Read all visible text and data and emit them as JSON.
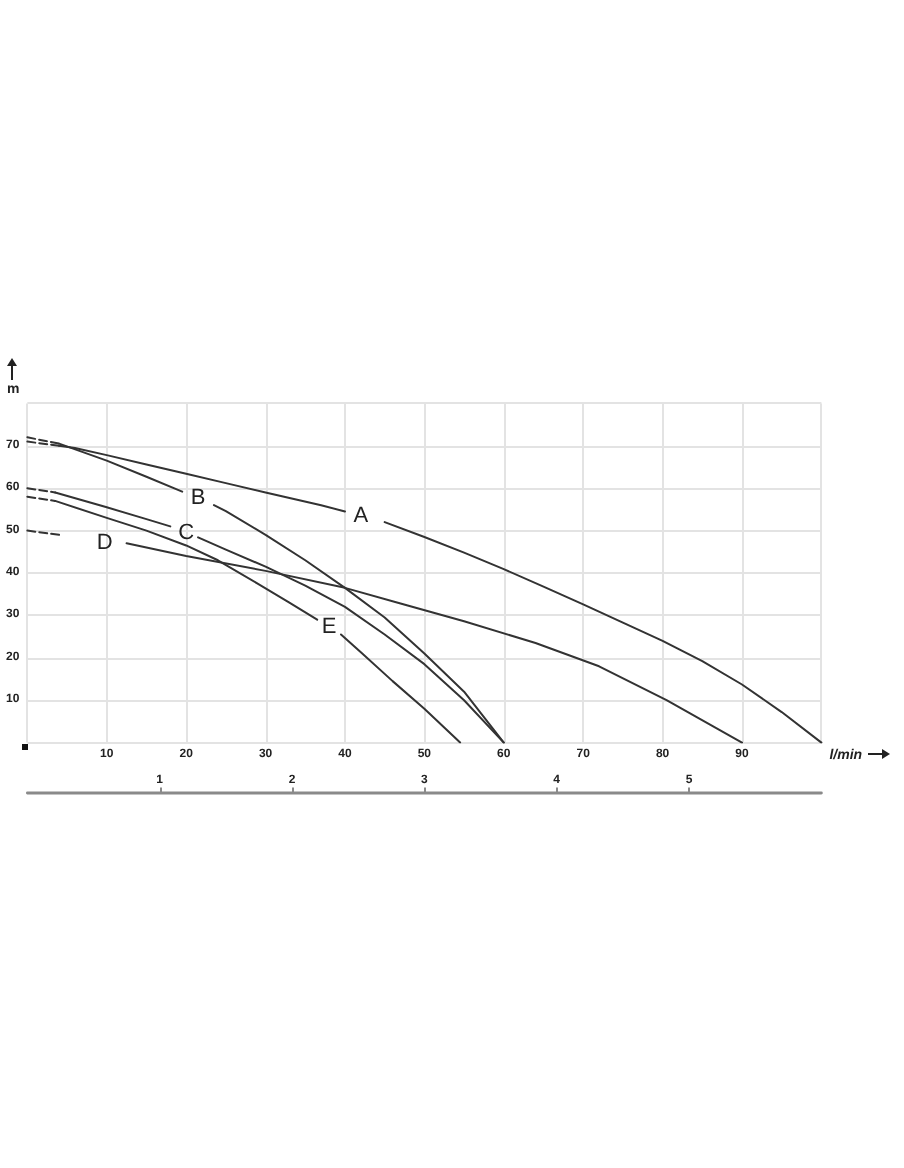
{
  "chart_data": {
    "type": "line",
    "xlabel": "l/min",
    "ylabel": "m",
    "xlim": [
      0,
      100
    ],
    "xticks": [
      {
        "value": 0,
        "label": null
      },
      10,
      20,
      30,
      40,
      50,
      60,
      70,
      80,
      90,
      {
        "value": 100,
        "label": null
      }
    ],
    "ylim": [
      0,
      80
    ],
    "yticks": [
      {
        "value": 0,
        "label": null
      },
      10,
      20,
      30,
      40,
      50,
      60,
      70,
      {
        "value": 80,
        "label": null
      }
    ],
    "x2lim": [
      0,
      6
    ],
    "x2ticks": [
      1,
      2,
      3,
      4,
      5
    ],
    "grid": true,
    "marker": "none",
    "series": [
      {
        "color": "#333333",
        "line_style": "dashed",
        "x": [
          0,
          4
        ],
        "values": [
          71,
          70
        ]
      },
      {
        "name": "A",
        "color": "#333333",
        "line_style": "solid",
        "x": [
          4,
          6,
          10,
          15,
          20,
          25,
          30,
          37,
          40,
          42,
          45,
          50,
          55,
          60,
          65,
          70,
          75,
          80,
          85,
          90,
          95,
          100
        ],
        "values": [
          70,
          69.5,
          67.8,
          65.6,
          63.4,
          61.2,
          59,
          56,
          54.5,
          null,
          52,
          48.5,
          44.8,
          40.9,
          36.8,
          32.6,
          28.3,
          24,
          19.2,
          13.7,
          7.2,
          0
        ]
      },
      {
        "color": "#333333",
        "line_style": "dashed",
        "x": [
          0,
          4
        ],
        "values": [
          72,
          70.5
        ]
      },
      {
        "name": "B",
        "color": "#333333",
        "line_style": "solid",
        "x": [
          4,
          10,
          15,
          19.5,
          21.5,
          23.5,
          25,
          30,
          35,
          40,
          45,
          50,
          55,
          60
        ],
        "values": [
          70.5,
          66.5,
          62.7,
          59.2,
          null,
          56,
          54.6,
          49,
          43,
          36.5,
          29.5,
          21,
          12,
          0
        ]
      },
      {
        "color": "#333333",
        "line_style": "dashed",
        "x": [
          0,
          3.5
        ],
        "values": [
          60,
          59
        ]
      },
      {
        "name": "C",
        "color": "#333333",
        "line_style": "solid",
        "x": [
          3.5,
          10,
          15,
          18,
          20,
          21.5,
          25,
          30,
          35,
          40,
          45,
          50,
          55,
          60
        ],
        "values": [
          59,
          55.5,
          52.7,
          51,
          null,
          48.4,
          45.5,
          41.5,
          37,
          32,
          25.5,
          18.5,
          10,
          0
        ]
      },
      {
        "color": "#333333",
        "line_style": "dashed",
        "x": [
          0,
          4
        ],
        "values": [
          50,
          49
        ]
      },
      {
        "name": "D",
        "color": "#333333",
        "line_style": "solid",
        "x": [
          12.5,
          20,
          30,
          40,
          47,
          55,
          64,
          72,
          80.5,
          90
        ],
        "values": [
          47,
          44,
          40.5,
          36.5,
          32.8,
          28.6,
          23.5,
          18,
          10,
          0
        ]
      },
      {
        "color": "#333333",
        "line_style": "dashed",
        "x": [
          0,
          3.5
        ],
        "values": [
          58,
          57
        ]
      },
      {
        "name": "E",
        "color": "#333333",
        "line_style": "solid",
        "x": [
          3.5,
          10,
          15,
          20,
          24,
          29,
          33,
          36.5,
          38,
          39.5,
          42,
          46,
          50,
          54.5
        ],
        "values": [
          57,
          53,
          50,
          46.5,
          43,
          37.5,
          33,
          29,
          null,
          25.5,
          21.3,
          14.5,
          8,
          0
        ]
      }
    ]
  }
}
